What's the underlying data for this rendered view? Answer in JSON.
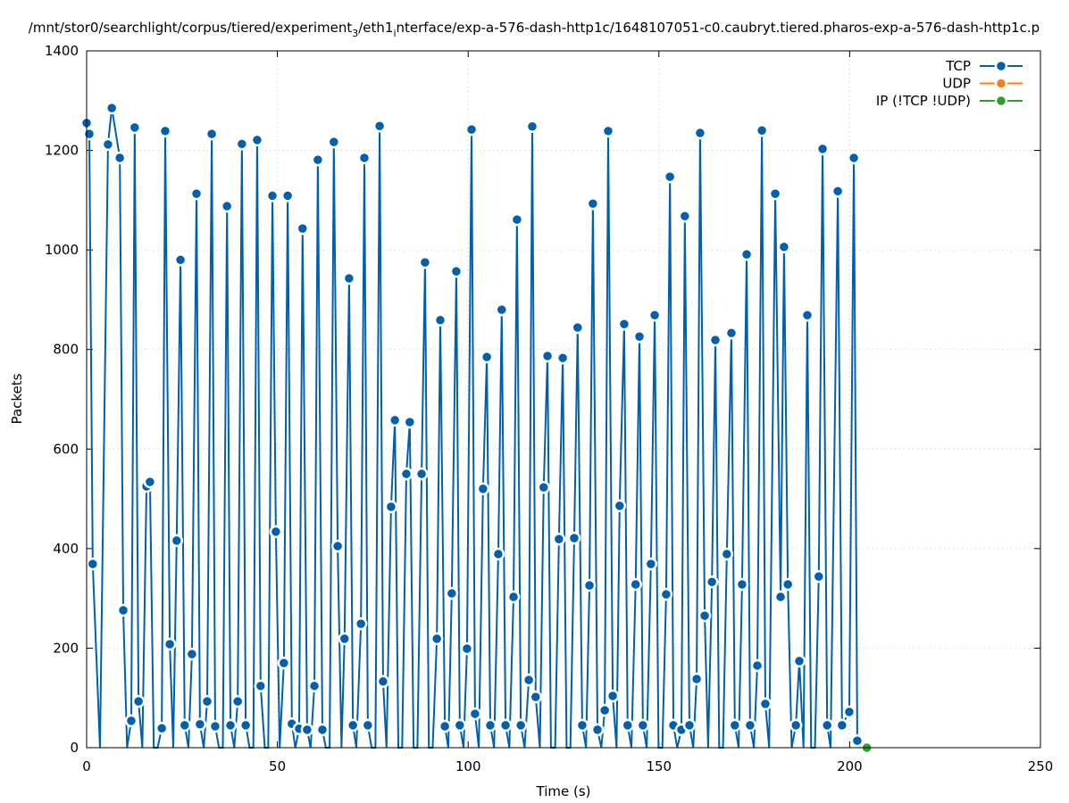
{
  "chart_data": {
    "type": "line",
    "title": {
      "pre": "/mnt/stor0/searchlight/corpus/tiered/experiment",
      "sub1": "3",
      "mid": "/eth1",
      "sub2": "i",
      "post": "nterface/exp-a-576-dash-http1c/1648107051-c0.caubryt.tiered.pharos-exp-a-576-dash-http1c.p"
    },
    "xlabel": "Time (s)",
    "ylabel": "Packets",
    "xlim": [
      0,
      250
    ],
    "ylim": [
      0,
      1400
    ],
    "xticks": [
      0,
      50,
      100,
      150,
      200,
      250
    ],
    "yticks": [
      0,
      200,
      400,
      600,
      800,
      1000,
      1200,
      1400
    ],
    "grid": true,
    "legend_position": "top-right",
    "series": [
      {
        "name": "TCP",
        "color": "#0060ad",
        "points": [
          [
            0,
            1255
          ],
          [
            0.7,
            1233
          ],
          [
            1.6,
            369
          ],
          [
            3.5,
            0
          ],
          [
            5.6,
            1212
          ],
          [
            6.6,
            1285
          ],
          [
            8.7,
            1185
          ],
          [
            9.6,
            276
          ],
          [
            10.6,
            0
          ],
          [
            11.7,
            54
          ],
          [
            12.6,
            1246
          ],
          [
            13.6,
            93
          ],
          [
            14.6,
            0
          ],
          [
            15.7,
            525
          ],
          [
            16.6,
            534
          ],
          [
            17.6,
            0
          ],
          [
            18.6,
            0
          ],
          [
            19.7,
            39
          ],
          [
            20.6,
            1239
          ],
          [
            21.8,
            208
          ],
          [
            22.7,
            0
          ],
          [
            23.6,
            416
          ],
          [
            24.6,
            980
          ],
          [
            25.7,
            45
          ],
          [
            26.7,
            0
          ],
          [
            27.6,
            188
          ],
          [
            28.8,
            1113
          ],
          [
            29.7,
            47
          ],
          [
            30.7,
            0
          ],
          [
            31.6,
            93
          ],
          [
            32.8,
            1233
          ],
          [
            33.7,
            43
          ],
          [
            34.7,
            0
          ],
          [
            35.7,
            0
          ],
          [
            36.8,
            1088
          ],
          [
            37.7,
            45
          ],
          [
            38.7,
            0
          ],
          [
            39.6,
            93
          ],
          [
            40.7,
            1213
          ],
          [
            41.7,
            45
          ],
          [
            42.7,
            0
          ],
          [
            43.7,
            0
          ],
          [
            44.7,
            1221
          ],
          [
            45.6,
            124
          ],
          [
            46.7,
            0
          ],
          [
            47.6,
            0
          ],
          [
            48.7,
            1109
          ],
          [
            49.6,
            434
          ],
          [
            50.6,
            0
          ],
          [
            51.7,
            170
          ],
          [
            52.7,
            1109
          ],
          [
            53.8,
            48
          ],
          [
            54.7,
            0
          ],
          [
            55.7,
            38
          ],
          [
            56.6,
            1043
          ],
          [
            57.8,
            36
          ],
          [
            58.7,
            0
          ],
          [
            59.7,
            124
          ],
          [
            60.6,
            1181
          ],
          [
            61.8,
            36
          ],
          [
            62.7,
            0
          ],
          [
            63.7,
            0
          ],
          [
            64.8,
            1217
          ],
          [
            65.8,
            405
          ],
          [
            66.8,
            0
          ],
          [
            67.6,
            219
          ],
          [
            68.8,
            943
          ],
          [
            69.8,
            45
          ],
          [
            70.7,
            0
          ],
          [
            71.9,
            249
          ],
          [
            72.8,
            1185
          ],
          [
            73.7,
            45
          ],
          [
            74.7,
            0
          ],
          [
            75.7,
            0
          ],
          [
            76.8,
            1249
          ],
          [
            77.7,
            133
          ],
          [
            78.6,
            0
          ],
          [
            79.8,
            484
          ],
          [
            80.8,
            658
          ],
          [
            81.7,
            0
          ],
          [
            82.7,
            0
          ],
          [
            83.8,
            550
          ],
          [
            84.7,
            654
          ],
          [
            85.7,
            0
          ],
          [
            86.7,
            0
          ],
          [
            87.8,
            550
          ],
          [
            88.7,
            975
          ],
          [
            89.7,
            0
          ],
          [
            90.7,
            0
          ],
          [
            91.8,
            219
          ],
          [
            92.7,
            859
          ],
          [
            93.9,
            43
          ],
          [
            94.8,
            0
          ],
          [
            95.7,
            310
          ],
          [
            96.9,
            957
          ],
          [
            97.8,
            45
          ],
          [
            98.8,
            0
          ],
          [
            99.7,
            199
          ],
          [
            100.9,
            1242
          ],
          [
            101.8,
            68
          ],
          [
            102.8,
            0
          ],
          [
            103.9,
            520
          ],
          [
            104.9,
            785
          ],
          [
            105.8,
            45
          ],
          [
            106.8,
            0
          ],
          [
            107.9,
            389
          ],
          [
            108.8,
            880
          ],
          [
            109.8,
            45
          ],
          [
            110.8,
            0
          ],
          [
            111.9,
            303
          ],
          [
            112.8,
            1061
          ],
          [
            113.8,
            45
          ],
          [
            114.8,
            0
          ],
          [
            115.9,
            136
          ],
          [
            116.8,
            1248
          ],
          [
            117.7,
            102
          ],
          [
            118.8,
            0
          ],
          [
            119.8,
            523
          ],
          [
            120.8,
            787
          ],
          [
            121.7,
            0
          ],
          [
            122.8,
            0
          ],
          [
            123.8,
            419
          ],
          [
            124.8,
            783
          ],
          [
            125.8,
            0
          ],
          [
            126.8,
            0
          ],
          [
            127.8,
            421
          ],
          [
            128.7,
            844
          ],
          [
            129.9,
            45
          ],
          [
            130.9,
            0
          ],
          [
            131.8,
            326
          ],
          [
            132.7,
            1093
          ],
          [
            133.9,
            36
          ],
          [
            134.9,
            0
          ],
          [
            135.8,
            75
          ],
          [
            136.7,
            1239
          ],
          [
            137.9,
            104
          ],
          [
            138.9,
            0
          ],
          [
            139.7,
            486
          ],
          [
            140.9,
            851
          ],
          [
            141.8,
            45
          ],
          [
            142.8,
            0
          ],
          [
            143.9,
            328
          ],
          [
            144.9,
            826
          ],
          [
            145.8,
            45
          ],
          [
            146.8,
            0
          ],
          [
            147.9,
            369
          ],
          [
            148.9,
            869
          ],
          [
            149.9,
            0
          ],
          [
            150.9,
            0
          ],
          [
            151.9,
            308
          ],
          [
            152.9,
            1147
          ],
          [
            153.8,
            45
          ],
          [
            154.8,
            0
          ],
          [
            155.9,
            36
          ],
          [
            156.8,
            1068
          ],
          [
            158.0,
            45
          ],
          [
            159.0,
            0
          ],
          [
            159.9,
            138
          ],
          [
            160.8,
            1235
          ],
          [
            162.0,
            265
          ],
          [
            162.9,
            0
          ],
          [
            163.9,
            333
          ],
          [
            164.8,
            819
          ],
          [
            165.8,
            0
          ],
          [
            166.8,
            0
          ],
          [
            167.8,
            389
          ],
          [
            169.0,
            833
          ],
          [
            169.9,
            45
          ],
          [
            170.9,
            0
          ],
          [
            171.8,
            328
          ],
          [
            173.0,
            991
          ],
          [
            173.9,
            45
          ],
          [
            174.9,
            0
          ],
          [
            175.8,
            165
          ],
          [
            177.0,
            1240
          ],
          [
            177.9,
            88
          ],
          [
            178.9,
            0
          ],
          [
            180.5,
            1113
          ],
          [
            181.9,
            303
          ],
          [
            182.8,
            1006
          ],
          [
            183.8,
            328
          ],
          [
            184.8,
            0
          ],
          [
            185.9,
            45
          ],
          [
            186.8,
            174
          ],
          [
            187.9,
            0
          ],
          [
            188.9,
            869
          ],
          [
            189.9,
            0
          ],
          [
            190.9,
            0
          ],
          [
            191.9,
            344
          ],
          [
            192.9,
            1203
          ],
          [
            194.1,
            45
          ],
          [
            195.0,
            0
          ],
          [
            196.9,
            1118
          ],
          [
            198.0,
            45
          ],
          [
            199.9,
            72
          ],
          [
            201.1,
            1185
          ],
          [
            202.0,
            14
          ],
          [
            203.0,
            0
          ]
        ]
      },
      {
        "name": "UDP",
        "color": "#ff7f0e",
        "points": []
      },
      {
        "name": "IP (!TCP  !UDP)",
        "color": "#2ca02c",
        "points": [
          [
            204.5,
            0
          ]
        ]
      }
    ]
  }
}
